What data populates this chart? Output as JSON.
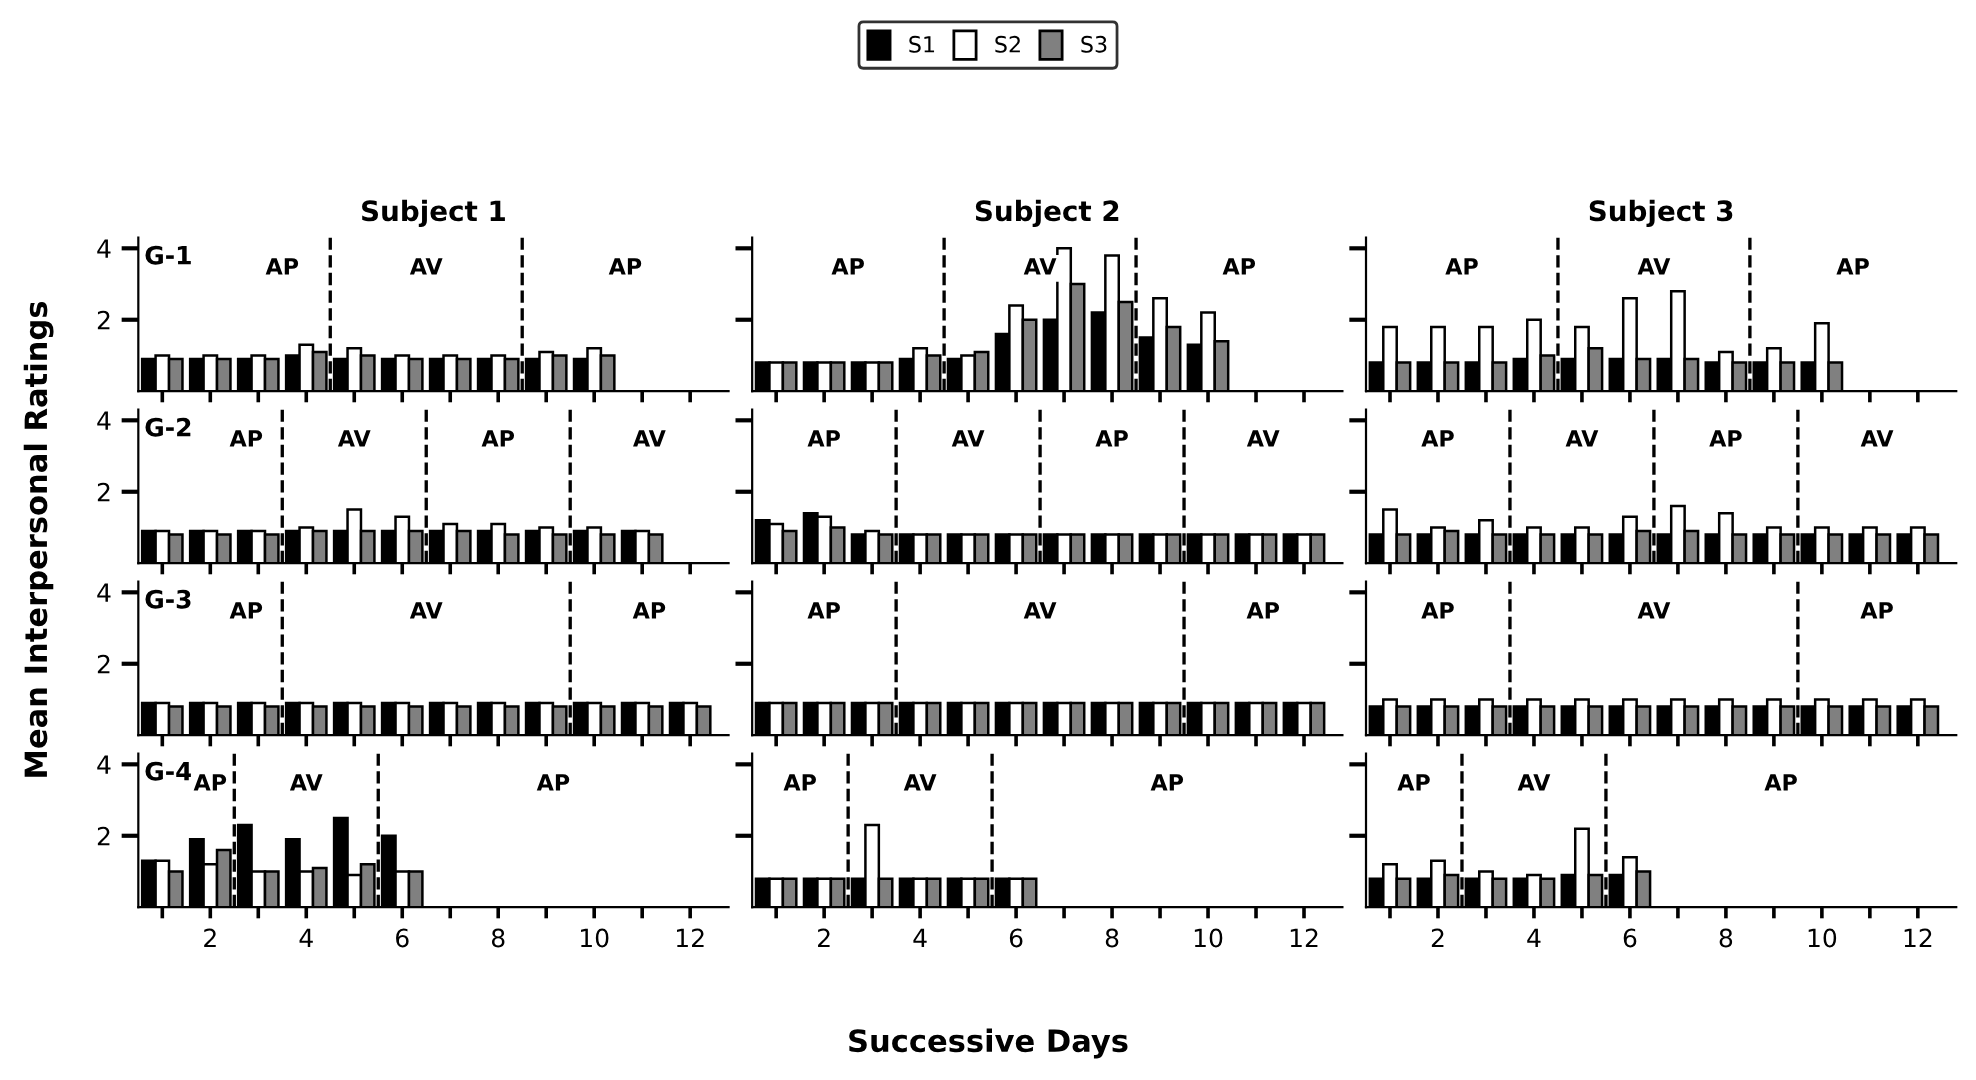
{
  "chart_data": [
    {
      "type": "bar",
      "title": "Subject 1",
      "subtitle": "G-1",
      "ylabel": "Mean Interpersonal Ratings",
      "legend": "top",
      "tick_labels": "y",
      "x": [
        1,
        2,
        3,
        4,
        5,
        6,
        7,
        8,
        9,
        10
      ],
      "ylim": [
        0,
        4.3
      ],
      "yticks": [
        2,
        4
      ],
      "xlim": [
        0.5,
        12.8
      ],
      "xticks": [
        {
          "value": 1,
          "label": null
        },
        2,
        {
          "value": 3,
          "label": null
        },
        4,
        {
          "value": 5,
          "label": null
        },
        6,
        {
          "value": 7,
          "label": null
        },
        8,
        {
          "value": 9,
          "label": null
        },
        10,
        {
          "value": 11,
          "label": null
        },
        12
      ],
      "series": [
        {
          "name": "S1",
          "color": "#000000",
          "values": [
            0.9,
            0.9,
            0.9,
            1.0,
            0.9,
            0.9,
            0.9,
            0.9,
            0.9,
            0.9
          ]
        },
        {
          "name": "S2",
          "color": "#ffffff",
          "values": [
            1.0,
            1.0,
            1.0,
            1.3,
            1.2,
            1.0,
            1.0,
            1.0,
            1.1,
            1.2
          ]
        },
        {
          "name": "S3",
          "color": "#808080",
          "values": [
            0.9,
            0.9,
            0.9,
            1.1,
            1.0,
            0.9,
            0.9,
            0.9,
            1.0,
            1.0
          ]
        }
      ],
      "ref_lines": [
        {
          "axis": "x",
          "value": 4.5,
          "line_style": "dashed"
        },
        {
          "axis": "x",
          "value": 8.5,
          "line_style": "dashed"
        }
      ],
      "annotations": [
        "AP",
        "AV",
        "AP"
      ]
    },
    {
      "type": "bar",
      "title": "Subject 2",
      "tick_labels": false,
      "x": [
        1,
        2,
        3,
        4,
        5,
        6,
        7,
        8,
        9,
        10
      ],
      "ylim": [
        0,
        4.3
      ],
      "yticks": [
        2,
        4
      ],
      "xlim": [
        0.5,
        12.8
      ],
      "xticks": [
        {
          "value": 1,
          "label": null
        },
        2,
        {
          "value": 3,
          "label": null
        },
        4,
        {
          "value": 5,
          "label": null
        },
        6,
        {
          "value": 7,
          "label": null
        },
        8,
        {
          "value": 9,
          "label": null
        },
        10,
        {
          "value": 11,
          "label": null
        },
        12
      ],
      "series": [
        {
          "color": "#000000",
          "values": [
            0.8,
            0.8,
            0.8,
            0.9,
            0.9,
            1.6,
            2.0,
            2.2,
            1.5,
            1.3
          ]
        },
        {
          "color": "#ffffff",
          "values": [
            0.8,
            0.8,
            0.8,
            1.2,
            1.0,
            2.4,
            4.0,
            3.8,
            2.6,
            2.2
          ]
        },
        {
          "color": "#808080",
          "values": [
            0.8,
            0.8,
            0.8,
            1.0,
            1.1,
            2.0,
            3.0,
            2.5,
            1.8,
            1.4
          ]
        }
      ],
      "ref_lines": [
        {
          "axis": "x",
          "value": 4.5,
          "line_style": "dashed"
        },
        {
          "axis": "x",
          "value": 8.5,
          "line_style": "dashed"
        }
      ],
      "annotations": [
        "AP",
        "AV",
        "AP"
      ]
    },
    {
      "type": "bar",
      "title": "Subject 3",
      "tick_labels": false,
      "x": [
        1,
        2,
        3,
        4,
        5,
        6,
        7,
        8,
        9,
        10
      ],
      "ylim": [
        0,
        4.3
      ],
      "yticks": [
        2,
        4
      ],
      "xlim": [
        0.5,
        12.8
      ],
      "xticks": [
        {
          "value": 1,
          "label": null
        },
        2,
        {
          "value": 3,
          "label": null
        },
        4,
        {
          "value": 5,
          "label": null
        },
        6,
        {
          "value": 7,
          "label": null
        },
        8,
        {
          "value": 9,
          "label": null
        },
        10,
        {
          "value": 11,
          "label": null
        },
        12
      ],
      "series": [
        {
          "color": "#000000",
          "values": [
            0.8,
            0.8,
            0.8,
            0.9,
            0.9,
            0.9,
            0.9,
            0.8,
            0.8,
            0.8
          ]
        },
        {
          "color": "#ffffff",
          "values": [
            1.8,
            1.8,
            1.8,
            2.0,
            1.8,
            2.6,
            2.8,
            1.1,
            1.2,
            1.9
          ]
        },
        {
          "color": "#808080",
          "values": [
            0.8,
            0.8,
            0.8,
            1.0,
            1.2,
            0.9,
            0.9,
            0.8,
            0.8,
            0.8
          ]
        }
      ],
      "ref_lines": [
        {
          "axis": "x",
          "value": 4.5,
          "line_style": "dashed"
        },
        {
          "axis": "x",
          "value": 8.5,
          "line_style": "dashed"
        }
      ],
      "annotations": [
        "AP",
        "AV",
        "AP"
      ]
    },
    {
      "type": "bar",
      "subtitle": "G-2",
      "tick_labels": "y",
      "x": [
        1,
        2,
        3,
        4,
        5,
        6,
        7,
        8,
        9,
        10,
        11
      ],
      "ylim": [
        0,
        4.3
      ],
      "yticks": [
        2,
        4
      ],
      "xlim": [
        0.5,
        12.8
      ],
      "xticks": [
        {
          "value": 1,
          "label": null
        },
        2,
        {
          "value": 3,
          "label": null
        },
        4,
        {
          "value": 5,
          "label": null
        },
        6,
        {
          "value": 7,
          "label": null
        },
        8,
        {
          "value": 9,
          "label": null
        },
        10,
        {
          "value": 11,
          "label": null
        },
        12
      ],
      "series": [
        {
          "color": "#000000",
          "values": [
            0.9,
            0.9,
            0.9,
            0.9,
            0.9,
            0.9,
            0.9,
            0.9,
            0.9,
            0.9,
            0.9
          ]
        },
        {
          "color": "#ffffff",
          "values": [
            0.9,
            0.9,
            0.9,
            1.0,
            1.5,
            1.3,
            1.1,
            1.1,
            1.0,
            1.0,
            0.9
          ]
        },
        {
          "color": "#808080",
          "values": [
            0.8,
            0.8,
            0.8,
            0.9,
            0.9,
            0.9,
            0.9,
            0.8,
            0.8,
            0.8,
            0.8
          ]
        }
      ],
      "ref_lines": [
        {
          "axis": "x",
          "value": 3.5,
          "line_style": "dashed"
        },
        {
          "axis": "x",
          "value": 6.5,
          "line_style": "dashed"
        },
        {
          "axis": "x",
          "value": 9.5,
          "line_style": "dashed"
        }
      ],
      "annotations": [
        "AP",
        "AV",
        "AP",
        "AV"
      ]
    },
    {
      "type": "bar",
      "tick_labels": false,
      "x": [
        1,
        2,
        3,
        4,
        5,
        6,
        7,
        8,
        9,
        10,
        11,
        12
      ],
      "ylim": [
        0,
        4.3
      ],
      "yticks": [
        2,
        4
      ],
      "xlim": [
        0.5,
        12.8
      ],
      "xticks": [
        {
          "value": 1,
          "label": null
        },
        2,
        {
          "value": 3,
          "label": null
        },
        4,
        {
          "value": 5,
          "label": null
        },
        6,
        {
          "value": 7,
          "label": null
        },
        8,
        {
          "value": 9,
          "label": null
        },
        10,
        {
          "value": 11,
          "label": null
        },
        12
      ],
      "series": [
        {
          "color": "#000000",
          "values": [
            1.2,
            1.4,
            0.8,
            0.8,
            0.8,
            0.8,
            0.8,
            0.8,
            0.8,
            0.8,
            0.8,
            0.8
          ]
        },
        {
          "color": "#ffffff",
          "values": [
            1.1,
            1.3,
            0.9,
            0.8,
            0.8,
            0.8,
            0.8,
            0.8,
            0.8,
            0.8,
            0.8,
            0.8
          ]
        },
        {
          "color": "#808080",
          "values": [
            0.9,
            1.0,
            0.8,
            0.8,
            0.8,
            0.8,
            0.8,
            0.8,
            0.8,
            0.8,
            0.8,
            0.8
          ]
        }
      ],
      "ref_lines": [
        {
          "axis": "x",
          "value": 3.5,
          "line_style": "dashed"
        },
        {
          "axis": "x",
          "value": 6.5,
          "line_style": "dashed"
        },
        {
          "axis": "x",
          "value": 9.5,
          "line_style": "dashed"
        }
      ],
      "annotations": [
        "AP",
        "AV",
        "AP",
        "AV"
      ]
    },
    {
      "type": "bar",
      "tick_labels": false,
      "x": [
        1,
        2,
        3,
        4,
        5,
        6,
        7,
        8,
        9,
        10,
        11,
        12
      ],
      "ylim": [
        0,
        4.3
      ],
      "yticks": [
        2,
        4
      ],
      "xlim": [
        0.5,
        12.8
      ],
      "xticks": [
        {
          "value": 1,
          "label": null
        },
        2,
        {
          "value": 3,
          "label": null
        },
        4,
        {
          "value": 5,
          "label": null
        },
        6,
        {
          "value": 7,
          "label": null
        },
        8,
        {
          "value": 9,
          "label": null
        },
        10,
        {
          "value": 11,
          "label": null
        },
        12
      ],
      "series": [
        {
          "color": "#000000",
          "values": [
            0.8,
            0.8,
            0.8,
            0.8,
            0.8,
            0.8,
            0.8,
            0.8,
            0.8,
            0.8,
            0.8,
            0.8
          ]
        },
        {
          "color": "#ffffff",
          "values": [
            1.5,
            1.0,
            1.2,
            1.0,
            1.0,
            1.3,
            1.6,
            1.4,
            1.0,
            1.0,
            1.0,
            1.0
          ]
        },
        {
          "color": "#808080",
          "values": [
            0.8,
            0.9,
            0.8,
            0.8,
            0.8,
            0.9,
            0.9,
            0.8,
            0.8,
            0.8,
            0.8,
            0.8
          ]
        }
      ],
      "ref_lines": [
        {
          "axis": "x",
          "value": 3.5,
          "line_style": "dashed"
        },
        {
          "axis": "x",
          "value": 6.5,
          "line_style": "dashed"
        },
        {
          "axis": "x",
          "value": 9.5,
          "line_style": "dashed"
        }
      ],
      "annotations": [
        "AP",
        "AV",
        "AP",
        "AV"
      ]
    },
    {
      "type": "bar",
      "subtitle": "G-3",
      "tick_labels": "y",
      "x": [
        1,
        2,
        3,
        4,
        5,
        6,
        7,
        8,
        9,
        10,
        11,
        12
      ],
      "ylim": [
        0,
        4.3
      ],
      "yticks": [
        2,
        4
      ],
      "xlim": [
        0.5,
        12.8
      ],
      "xticks": [
        {
          "value": 1,
          "label": null
        },
        2,
        {
          "value": 3,
          "label": null
        },
        4,
        {
          "value": 5,
          "label": null
        },
        6,
        {
          "value": 7,
          "label": null
        },
        8,
        {
          "value": 9,
          "label": null
        },
        10,
        {
          "value": 11,
          "label": null
        },
        12
      ],
      "series": [
        {
          "color": "#000000",
          "values": [
            0.9,
            0.9,
            0.9,
            0.9,
            0.9,
            0.9,
            0.9,
            0.9,
            0.9,
            0.9,
            0.9,
            0.9
          ]
        },
        {
          "color": "#ffffff",
          "values": [
            0.9,
            0.9,
            0.9,
            0.9,
            0.9,
            0.9,
            0.9,
            0.9,
            0.9,
            0.9,
            0.9,
            0.9
          ]
        },
        {
          "color": "#808080",
          "values": [
            0.8,
            0.8,
            0.8,
            0.8,
            0.8,
            0.8,
            0.8,
            0.8,
            0.8,
            0.8,
            0.8,
            0.8
          ]
        }
      ],
      "ref_lines": [
        {
          "axis": "x",
          "value": 3.5,
          "line_style": "dashed"
        },
        {
          "axis": "x",
          "value": 9.5,
          "line_style": "dashed"
        }
      ],
      "annotations": [
        "AP",
        "AV",
        "AP"
      ]
    },
    {
      "type": "bar",
      "tick_labels": false,
      "x": [
        1,
        2,
        3,
        4,
        5,
        6,
        7,
        8,
        9,
        10,
        11,
        12
      ],
      "ylim": [
        0,
        4.3
      ],
      "yticks": [
        2,
        4
      ],
      "xlim": [
        0.5,
        12.8
      ],
      "xticks": [
        {
          "value": 1,
          "label": null
        },
        2,
        {
          "value": 3,
          "label": null
        },
        4,
        {
          "value": 5,
          "label": null
        },
        6,
        {
          "value": 7,
          "label": null
        },
        8,
        {
          "value": 9,
          "label": null
        },
        10,
        {
          "value": 11,
          "label": null
        },
        12
      ],
      "series": [
        {
          "color": "#000000",
          "values": [
            0.9,
            0.9,
            0.9,
            0.9,
            0.9,
            0.9,
            0.9,
            0.9,
            0.9,
            0.9,
            0.9,
            0.9
          ]
        },
        {
          "color": "#ffffff",
          "values": [
            0.9,
            0.9,
            0.9,
            0.9,
            0.9,
            0.9,
            0.9,
            0.9,
            0.9,
            0.9,
            0.9,
            0.9
          ]
        },
        {
          "color": "#808080",
          "values": [
            0.9,
            0.9,
            0.9,
            0.9,
            0.9,
            0.9,
            0.9,
            0.9,
            0.9,
            0.9,
            0.9,
            0.9
          ]
        }
      ],
      "ref_lines": [
        {
          "axis": "x",
          "value": 3.5,
          "line_style": "dashed"
        },
        {
          "axis": "x",
          "value": 9.5,
          "line_style": "dashed"
        }
      ],
      "annotations": [
        "AP",
        "AV",
        "AP"
      ]
    },
    {
      "type": "bar",
      "tick_labels": false,
      "x": [
        1,
        2,
        3,
        4,
        5,
        6,
        7,
        8,
        9,
        10,
        11,
        12
      ],
      "ylim": [
        0,
        4.3
      ],
      "yticks": [
        2,
        4
      ],
      "xlim": [
        0.5,
        12.8
      ],
      "xticks": [
        {
          "value": 1,
          "label": null
        },
        2,
        {
          "value": 3,
          "label": null
        },
        4,
        {
          "value": 5,
          "label": null
        },
        6,
        {
          "value": 7,
          "label": null
        },
        8,
        {
          "value": 9,
          "label": null
        },
        10,
        {
          "value": 11,
          "label": null
        },
        12
      ],
      "series": [
        {
          "color": "#000000",
          "values": [
            0.8,
            0.8,
            0.8,
            0.8,
            0.8,
            0.8,
            0.8,
            0.8,
            0.8,
            0.8,
            0.8,
            0.8
          ]
        },
        {
          "color": "#ffffff",
          "values": [
            1.0,
            1.0,
            1.0,
            1.0,
            1.0,
            1.0,
            1.0,
            1.0,
            1.0,
            1.0,
            1.0,
            1.0
          ]
        },
        {
          "color": "#808080",
          "values": [
            0.8,
            0.8,
            0.8,
            0.8,
            0.8,
            0.8,
            0.8,
            0.8,
            0.8,
            0.8,
            0.8,
            0.8
          ]
        }
      ],
      "ref_lines": [
        {
          "axis": "x",
          "value": 3.5,
          "line_style": "dashed"
        },
        {
          "axis": "x",
          "value": 9.5,
          "line_style": "dashed"
        }
      ],
      "annotations": [
        "AP",
        "AV",
        "AP"
      ]
    },
    {
      "type": "bar",
      "subtitle": "G-4",
      "x": [
        1,
        2,
        3,
        4,
        5,
        6
      ],
      "ylim": [
        0,
        4.3
      ],
      "yticks": [
        2,
        4
      ],
      "xlim": [
        0.5,
        12.8
      ],
      "xticks": [
        {
          "value": 1,
          "label": null
        },
        2,
        {
          "value": 3,
          "label": null
        },
        4,
        {
          "value": 5,
          "label": null
        },
        6,
        {
          "value": 7,
          "label": null
        },
        8,
        {
          "value": 9,
          "label": null
        },
        10,
        {
          "value": 11,
          "label": null
        },
        12
      ],
      "series": [
        {
          "color": "#000000",
          "values": [
            1.3,
            1.9,
            2.3,
            1.9,
            2.5,
            2.0
          ]
        },
        {
          "color": "#ffffff",
          "values": [
            1.3,
            1.2,
            1.0,
            1.0,
            0.9,
            1.0
          ]
        },
        {
          "color": "#808080",
          "values": [
            1.0,
            1.6,
            1.0,
            1.1,
            1.2,
            1.0
          ]
        }
      ],
      "ref_lines": [
        {
          "axis": "x",
          "value": 2.5,
          "line_style": "dashed"
        },
        {
          "axis": "x",
          "value": 5.5,
          "line_style": "dashed"
        }
      ],
      "annotations": [
        "AP",
        "AV",
        "AP"
      ]
    },
    {
      "type": "bar",
      "xlabel": "Successive Days",
      "tick_labels": "x",
      "x": [
        1,
        2,
        3,
        4,
        5,
        6
      ],
      "ylim": [
        0,
        4.3
      ],
      "yticks": [
        2,
        4
      ],
      "xlim": [
        0.5,
        12.8
      ],
      "xticks": [
        {
          "value": 1,
          "label": null
        },
        2,
        {
          "value": 3,
          "label": null
        },
        4,
        {
          "value": 5,
          "label": null
        },
        6,
        {
          "value": 7,
          "label": null
        },
        8,
        {
          "value": 9,
          "label": null
        },
        10,
        {
          "value": 11,
          "label": null
        },
        12
      ],
      "series": [
        {
          "color": "#000000",
          "values": [
            0.8,
            0.8,
            0.8,
            0.8,
            0.8,
            0.8
          ]
        },
        {
          "color": "#ffffff",
          "values": [
            0.8,
            0.8,
            2.3,
            0.8,
            0.8,
            0.8
          ]
        },
        {
          "color": "#808080",
          "values": [
            0.8,
            0.8,
            0.8,
            0.8,
            0.8,
            0.8
          ]
        }
      ],
      "ref_lines": [
        {
          "axis": "x",
          "value": 2.5,
          "line_style": "dashed"
        },
        {
          "axis": "x",
          "value": 5.5,
          "line_style": "dashed"
        }
      ],
      "annotations": [
        "AP",
        "AV",
        "AP"
      ]
    },
    {
      "type": "bar",
      "tick_labels": "x",
      "x": [
        1,
        2,
        3,
        4,
        5,
        6
      ],
      "ylim": [
        0,
        4.3
      ],
      "yticks": [
        2,
        4
      ],
      "xlim": [
        0.5,
        12.8
      ],
      "xticks": [
        {
          "value": 1,
          "label": null
        },
        2,
        {
          "value": 3,
          "label": null
        },
        4,
        {
          "value": 5,
          "label": null
        },
        6,
        {
          "value": 7,
          "label": null
        },
        8,
        {
          "value": 9,
          "label": null
        },
        10,
        {
          "value": 11,
          "label": null
        },
        12
      ],
      "series": [
        {
          "color": "#000000",
          "values": [
            0.8,
            0.8,
            0.8,
            0.8,
            0.9,
            0.9
          ]
        },
        {
          "color": "#ffffff",
          "values": [
            1.2,
            1.3,
            1.0,
            0.9,
            2.2,
            1.4
          ]
        },
        {
          "color": "#808080",
          "values": [
            0.8,
            0.9,
            0.8,
            0.8,
            0.9,
            1.0
          ]
        }
      ],
      "ref_lines": [
        {
          "axis": "x",
          "value": 2.5,
          "line_style": "dashed"
        },
        {
          "axis": "x",
          "value": 5.5,
          "line_style": "dashed"
        }
      ],
      "annotations": [
        "AP",
        "AV",
        "AP"
      ]
    }
  ]
}
